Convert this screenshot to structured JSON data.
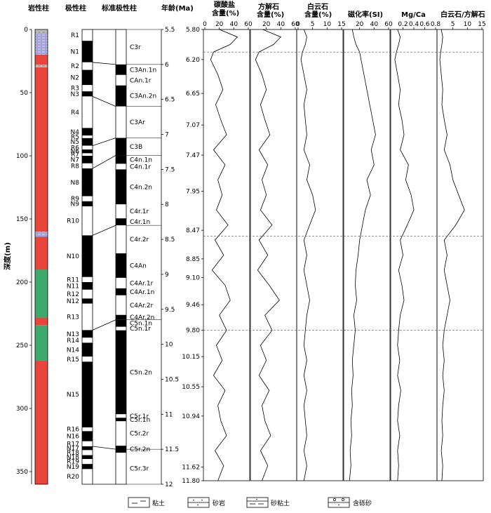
{
  "headers": {
    "lithology": "岩性柱",
    "polarity": "极性柱",
    "gpts": "标准极性柱",
    "age": "年龄(Ma)",
    "depth_label": "深度(m)",
    "carbonate": [
      "碳酸盐",
      "含量(%)"
    ],
    "calcite": [
      "方解石",
      "含量(%)"
    ],
    "dolomite": [
      "白云石",
      "含量(%)"
    ],
    "susceptibility": "磁化率(SI)",
    "mgca": "Mg/Ca",
    "dolcal": "白云石/方解石"
  },
  "legend": [
    {
      "label": "粘土",
      "pattern": "clay"
    },
    {
      "label": "砂岩",
      "pattern": "sandstone"
    },
    {
      "label": "砂粘土",
      "pattern": "sandy-clay"
    },
    {
      "label": "含砾砂",
      "pattern": "gravel-sand"
    }
  ],
  "colors": {
    "red": "#e8453c",
    "green": "#3fa86d",
    "purple": "#9c9ad0",
    "gray": "#b9b9b9"
  },
  "chart_data": {
    "type": "line",
    "depth_axis": {
      "label": "深度(m)",
      "range": [
        0,
        360
      ],
      "ticks": [
        0,
        50,
        100,
        150,
        200,
        250,
        300,
        350
      ]
    },
    "lithology": [
      {
        "from": 0,
        "to": 3,
        "type": "gray"
      },
      {
        "from": 3,
        "to": 20,
        "type": "purple"
      },
      {
        "from": 20,
        "to": 28,
        "type": "red"
      },
      {
        "from": 28,
        "to": 30,
        "type": "gray"
      },
      {
        "from": 30,
        "to": 160,
        "type": "red"
      },
      {
        "from": 160,
        "to": 164,
        "type": "purple"
      },
      {
        "from": 164,
        "to": 190,
        "type": "red"
      },
      {
        "from": 190,
        "to": 228,
        "type": "green"
      },
      {
        "from": 228,
        "to": 234,
        "type": "red"
      },
      {
        "from": 234,
        "to": 262,
        "type": "green"
      },
      {
        "from": 262,
        "to": 360,
        "type": "red"
      }
    ],
    "polarity_zones": [
      {
        "name": "R1",
        "top": 0,
        "bottom": 9,
        "normal": false
      },
      {
        "name": "N1",
        "top": 9,
        "bottom": 26,
        "normal": true
      },
      {
        "name": "R2",
        "top": 26,
        "bottom": 32,
        "normal": false
      },
      {
        "name": "N2",
        "top": 32,
        "bottom": 44,
        "normal": true
      },
      {
        "name": "R3",
        "top": 44,
        "bottom": 49,
        "normal": false
      },
      {
        "name": "N3",
        "top": 49,
        "bottom": 53,
        "normal": true
      },
      {
        "name": "R4",
        "top": 53,
        "bottom": 78,
        "normal": false
      },
      {
        "name": "N4",
        "top": 78,
        "bottom": 84,
        "normal": true
      },
      {
        "name": "R5",
        "top": 84,
        "bottom": 86,
        "normal": false
      },
      {
        "name": "N5",
        "top": 86,
        "bottom": 92,
        "normal": true
      },
      {
        "name": "R6",
        "top": 92,
        "bottom": 95,
        "normal": false
      },
      {
        "name": "N6",
        "top": 95,
        "bottom": 98,
        "normal": true
      },
      {
        "name": "R7",
        "top": 98,
        "bottom": 100,
        "normal": false
      },
      {
        "name": "N7",
        "top": 100,
        "bottom": 106,
        "normal": true
      },
      {
        "name": "R8",
        "top": 106,
        "bottom": 110,
        "normal": false
      },
      {
        "name": "N8",
        "top": 110,
        "bottom": 132,
        "normal": true
      },
      {
        "name": "R9",
        "top": 132,
        "bottom": 136,
        "normal": false
      },
      {
        "name": "N9",
        "top": 136,
        "bottom": 140,
        "normal": true
      },
      {
        "name": "R10",
        "top": 140,
        "bottom": 163,
        "normal": false
      },
      {
        "name": "N10",
        "top": 163,
        "bottom": 196,
        "normal": true
      },
      {
        "name": "R11",
        "top": 196,
        "bottom": 200,
        "normal": false
      },
      {
        "name": "N11",
        "top": 200,
        "bottom": 206,
        "normal": true
      },
      {
        "name": "R12",
        "top": 206,
        "bottom": 213,
        "normal": false
      },
      {
        "name": "N12",
        "top": 213,
        "bottom": 217,
        "normal": true
      },
      {
        "name": "R13",
        "top": 217,
        "bottom": 238,
        "normal": false
      },
      {
        "name": "N13",
        "top": 238,
        "bottom": 244,
        "normal": true
      },
      {
        "name": "R14",
        "top": 244,
        "bottom": 248,
        "normal": false
      },
      {
        "name": "N14",
        "top": 248,
        "bottom": 259,
        "normal": true
      },
      {
        "name": "R15",
        "top": 259,
        "bottom": 263,
        "normal": false
      },
      {
        "name": "N15",
        "top": 263,
        "bottom": 315,
        "normal": true
      },
      {
        "name": "R16",
        "top": 315,
        "bottom": 318,
        "normal": false
      },
      {
        "name": "N16",
        "top": 318,
        "bottom": 326,
        "normal": true
      },
      {
        "name": "R17",
        "top": 326,
        "bottom": 330,
        "normal": false
      },
      {
        "name": "N17",
        "top": 330,
        "bottom": 333,
        "normal": true
      },
      {
        "name": "R18",
        "top": 333,
        "bottom": 337,
        "normal": false
      },
      {
        "name": "N18",
        "top": 337,
        "bottom": 340,
        "normal": true
      },
      {
        "name": "R19",
        "top": 340,
        "bottom": 344,
        "normal": false
      },
      {
        "name": "N19",
        "top": 344,
        "bottom": 348,
        "normal": true
      },
      {
        "name": "R20",
        "top": 348,
        "bottom": 360,
        "normal": false
      }
    ],
    "gpts": {
      "age_range": [
        5.5,
        12
      ],
      "age_ticks": [
        5.5,
        6,
        6.5,
        7,
        7.5,
        8,
        8.5,
        9,
        9.5,
        10,
        10.5,
        11,
        11.5,
        12
      ],
      "chrons": [
        {
          "name": "C3r",
          "top": 5.5,
          "bottom": 6.0,
          "normal": false
        },
        {
          "name": "C3An.1n",
          "top": 6.0,
          "bottom": 6.15,
          "normal": true
        },
        {
          "name": "CAn.1r",
          "top": 6.15,
          "bottom": 6.3,
          "normal": false
        },
        {
          "name": "C3An.2n",
          "top": 6.3,
          "bottom": 6.6,
          "normal": true
        },
        {
          "name": "C3Ar",
          "top": 6.6,
          "bottom": 7.05,
          "normal": false
        },
        {
          "name": "C3B",
          "top": 7.05,
          "bottom": 7.3,
          "normal": true
        },
        {
          "name": "C4n.1n",
          "top": 7.3,
          "bottom": 7.42,
          "normal": true
        },
        {
          "name": "C4n.1r",
          "top": 7.42,
          "bottom": 7.5,
          "normal": false
        },
        {
          "name": "C4n.2n",
          "top": 7.5,
          "bottom": 8.0,
          "normal": true
        },
        {
          "name": "C4r.1r",
          "top": 8.0,
          "bottom": 8.2,
          "normal": false
        },
        {
          "name": "C4r.1n",
          "top": 8.2,
          "bottom": 8.3,
          "normal": true
        },
        {
          "name": "C4r.2r",
          "top": 8.3,
          "bottom": 8.7,
          "normal": false
        },
        {
          "name": "C4An",
          "top": 8.7,
          "bottom": 9.05,
          "normal": true
        },
        {
          "name": "C4Ar.1r",
          "top": 9.05,
          "bottom": 9.2,
          "normal": false
        },
        {
          "name": "C4Ar.1n",
          "top": 9.2,
          "bottom": 9.3,
          "normal": true
        },
        {
          "name": "C4Ar.2r",
          "top": 9.3,
          "bottom": 9.58,
          "normal": false
        },
        {
          "name": "C4Ar.2n",
          "top": 9.58,
          "bottom": 9.65,
          "normal": true
        },
        {
          "name": "C5n.1n",
          "top": 9.65,
          "bottom": 9.75,
          "normal": true
        },
        {
          "name": "C5n.1r",
          "top": 9.75,
          "bottom": 9.8,
          "normal": false
        },
        {
          "name": "C5n.2n",
          "top": 9.8,
          "bottom": 11.0,
          "normal": true
        },
        {
          "name": "C5r.1r",
          "top": 11.0,
          "bottom": 11.05,
          "normal": false
        },
        {
          "name": "C5r.1n",
          "top": 11.05,
          "bottom": 11.1,
          "normal": true
        },
        {
          "name": "C5r.2r",
          "top": 11.1,
          "bottom": 11.45,
          "normal": false
        },
        {
          "name": "C5r.2n",
          "top": 11.45,
          "bottom": 11.55,
          "normal": true
        },
        {
          "name": "C5r.3r",
          "top": 11.55,
          "bottom": 12.0,
          "normal": false
        }
      ],
      "ties": [
        [
          0,
          5.5
        ],
        [
          26,
          6.0
        ],
        [
          53,
          6.6
        ],
        [
          92,
          7.05
        ],
        [
          110,
          7.3
        ],
        [
          163,
          8.3
        ],
        [
          238,
          9.65
        ],
        [
          330,
          11.5
        ],
        [
          360,
          12.0
        ]
      ]
    },
    "age_axis": {
      "range": [
        5.8,
        11.8
      ],
      "ticks": [
        5.8,
        6.2,
        6.65,
        7.07,
        7.47,
        7.95,
        8.47,
        8.85,
        9.1,
        9.46,
        9.8,
        10.15,
        10.55,
        10.94,
        11.62,
        11.8
      ],
      "dashed_at": [
        6.1,
        8.55,
        9.8
      ]
    },
    "series": [
      {
        "name": "碳酸盐含量(%)",
        "key": "carbonate",
        "xlim": [
          0,
          60
        ],
        "xticks": [
          0,
          20,
          40,
          60
        ],
        "tick_labels": [
          "0",
          "20",
          "40",
          "60"
        ],
        "y": [
          5.8,
          5.9,
          6.0,
          6.1,
          6.2,
          6.4,
          6.6,
          6.8,
          7.0,
          7.2,
          7.4,
          7.6,
          7.8,
          8.0,
          8.2,
          8.4,
          8.6,
          8.8,
          9.0,
          9.2,
          9.4,
          9.6,
          9.8,
          10.0,
          10.2,
          10.4,
          10.6,
          10.8,
          11.0,
          11.2,
          11.4,
          11.6,
          11.8
        ],
        "x": [
          20,
          45,
          35,
          12,
          8,
          18,
          25,
          15,
          22,
          30,
          12,
          28,
          18,
          24,
          16,
          32,
          14,
          26,
          10,
          28,
          35,
          20,
          30,
          16,
          24,
          12,
          28,
          18,
          22,
          30,
          14,
          26,
          18
        ]
      },
      {
        "name": "方解石含量(%)",
        "key": "calcite",
        "xlim": [
          0,
          60
        ],
        "xticks": [
          20,
          40,
          60
        ],
        "tick_labels": [
          "20",
          "40",
          "60"
        ],
        "y": [
          5.8,
          5.9,
          6.0,
          6.1,
          6.2,
          6.4,
          6.6,
          6.8,
          7.0,
          7.2,
          7.4,
          7.6,
          7.8,
          8.0,
          8.2,
          8.4,
          8.6,
          8.8,
          9.0,
          9.2,
          9.4,
          9.6,
          9.8,
          10.0,
          10.2,
          10.4,
          10.6,
          10.8,
          11.0,
          11.2,
          11.4,
          11.6,
          11.8
        ],
        "x": [
          15,
          40,
          30,
          10,
          5,
          14,
          20,
          12,
          18,
          25,
          10,
          22,
          14,
          20,
          12,
          28,
          10,
          22,
          8,
          24,
          38,
          18,
          28,
          12,
          20,
          10,
          24,
          14,
          18,
          26,
          12,
          22,
          14
        ]
      },
      {
        "name": "白云石含量(%)",
        "key": "dolomite",
        "xlim": [
          0,
          15
        ],
        "xticks": [
          0,
          5,
          10,
          15
        ],
        "tick_labels": [
          "0",
          "5",
          "10",
          "15"
        ],
        "y": [
          5.8,
          5.9,
          6.0,
          6.1,
          6.2,
          6.4,
          6.6,
          6.8,
          7.0,
          7.2,
          7.4,
          7.6,
          7.8,
          8.0,
          8.2,
          8.4,
          8.6,
          8.8,
          9.0,
          9.2,
          9.4,
          9.6,
          9.8,
          10.0,
          10.2,
          10.4,
          10.6,
          10.8,
          11.0,
          11.2,
          11.4,
          11.6,
          11.8
        ],
        "x": [
          2,
          3,
          2.5,
          1.5,
          1,
          2,
          3,
          2,
          2.5,
          3,
          2,
          4,
          3,
          5,
          6,
          4,
          2,
          3,
          2,
          3,
          4,
          3,
          2.5,
          2,
          3,
          2,
          3,
          2,
          2.5,
          3,
          2,
          3,
          2
        ]
      },
      {
        "name": "磁化率(SI)",
        "key": "susceptibility",
        "xlim": [
          0,
          60
        ],
        "xticks": [
          20,
          40,
          60
        ],
        "tick_labels": [
          "20",
          "40",
          "60"
        ],
        "y": [
          5.8,
          5.9,
          6.0,
          6.1,
          6.2,
          6.4,
          6.6,
          6.8,
          7.0,
          7.2,
          7.4,
          7.6,
          7.8,
          8.0,
          8.2,
          8.4,
          8.6,
          8.8,
          9.0,
          9.2,
          9.4,
          9.6,
          9.8,
          10.0,
          10.2,
          10.4,
          10.6,
          10.8,
          11.0,
          11.2,
          11.4,
          11.6,
          11.8
        ],
        "x": [
          10,
          12,
          15,
          20,
          22,
          26,
          30,
          34,
          38,
          42,
          36,
          40,
          30,
          35,
          28,
          24,
          20,
          18,
          15,
          14,
          16,
          12,
          14,
          12,
          10,
          11,
          9,
          10,
          8,
          9,
          7,
          8,
          6
        ]
      },
      {
        "name": "Mg/Ca",
        "key": "mgca",
        "xlim": [
          0,
          0.8
        ],
        "xticks": [
          0.2,
          0.4,
          0.6,
          0.8
        ],
        "tick_labels": [
          "0.2",
          "0.4",
          "0.6",
          "0.8"
        ],
        "y": [
          5.8,
          5.9,
          6.0,
          6.1,
          6.2,
          6.4,
          6.6,
          6.8,
          7.0,
          7.2,
          7.4,
          7.6,
          7.8,
          8.0,
          8.2,
          8.4,
          8.6,
          8.8,
          9.0,
          9.2,
          9.4,
          9.6,
          9.8,
          10.0,
          10.2,
          10.4,
          10.6,
          10.8,
          11.0,
          11.2,
          11.4,
          11.6,
          11.8
        ],
        "x": [
          0.1,
          0.15,
          0.12,
          0.08,
          0.05,
          0.1,
          0.15,
          0.12,
          0.18,
          0.22,
          0.15,
          0.3,
          0.25,
          0.35,
          0.4,
          0.28,
          0.15,
          0.2,
          0.12,
          0.18,
          0.22,
          0.15,
          0.12,
          0.1,
          0.14,
          0.1,
          0.16,
          0.12,
          0.1,
          0.14,
          0.1,
          0.12,
          0.1
        ]
      },
      {
        "name": "白云石/方解石",
        "key": "dolcal",
        "xlim": [
          0,
          15
        ],
        "xticks": [
          5,
          10,
          15
        ],
        "tick_labels": [
          "5",
          "10",
          "15"
        ],
        "y": [
          5.8,
          5.9,
          6.0,
          6.1,
          6.2,
          6.4,
          6.6,
          6.8,
          7.0,
          7.2,
          7.4,
          7.6,
          7.8,
          8.0,
          8.2,
          8.4,
          8.6,
          8.8,
          9.0,
          9.2,
          9.4,
          9.6,
          9.8,
          10.0,
          10.2,
          10.4,
          10.6,
          10.8,
          11.0,
          11.2,
          11.4,
          11.6,
          11.8
        ],
        "x": [
          1,
          1.5,
          1.2,
          0.8,
          0.5,
          1,
          1.5,
          1.2,
          2,
          3,
          2,
          4,
          5,
          7,
          9,
          6,
          2,
          3,
          2,
          3,
          4,
          3,
          2,
          1.5,
          2,
          1.5,
          2,
          1.5,
          1.2,
          1.5,
          1,
          1.5,
          1.2
        ]
      }
    ]
  }
}
